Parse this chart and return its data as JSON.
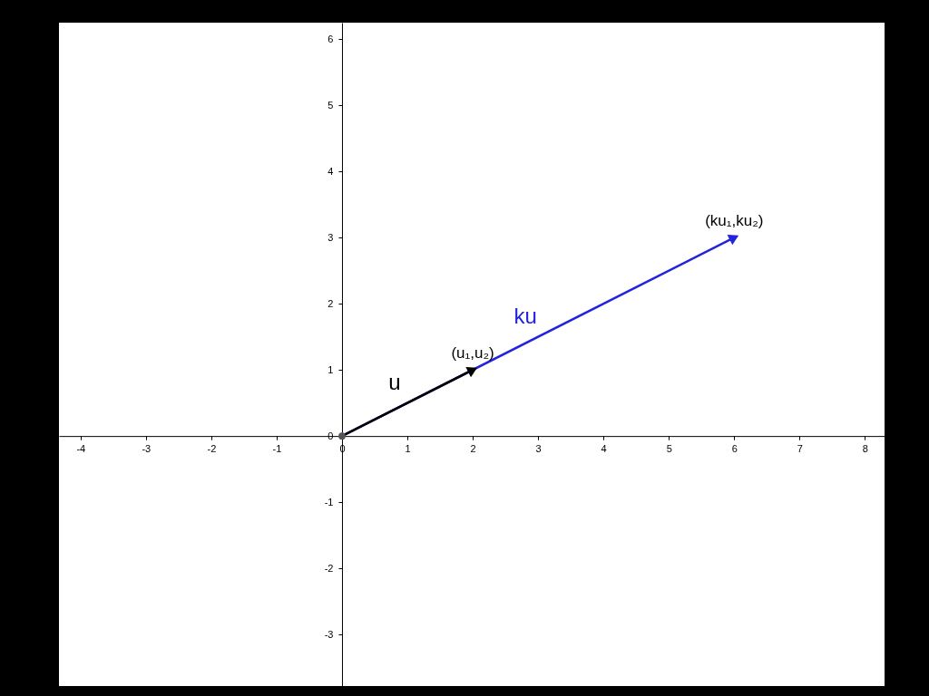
{
  "chart_data": {
    "type": "line",
    "xlim": [
      -4.33,
      8.3
    ],
    "ylim": [
      -3.78,
      6.25
    ],
    "xticks": [
      -4,
      -3,
      -2,
      -1,
      0,
      1,
      2,
      3,
      4,
      5,
      6,
      7,
      8
    ],
    "yticks": [
      -3,
      -2,
      -1,
      0,
      1,
      2,
      3,
      4,
      5,
      6
    ],
    "grid": false,
    "series": [
      {
        "name": "ku",
        "color": "#2323dc",
        "x": [
          0,
          6
        ],
        "values": [
          0,
          3
        ]
      },
      {
        "name": "u",
        "color": "#000000",
        "x": [
          0,
          2
        ],
        "values": [
          0,
          1
        ]
      },
      {
        "type": "scatter",
        "color": "#555555",
        "x": [
          0
        ],
        "values": [
          0
        ]
      }
    ],
    "annotations": [
      {
        "text": "(u₁,u₂)",
        "x": 2,
        "y": 1
      },
      {
        "text": "(ku₁,ku₂)",
        "x": 6,
        "y": 3
      }
    ]
  }
}
